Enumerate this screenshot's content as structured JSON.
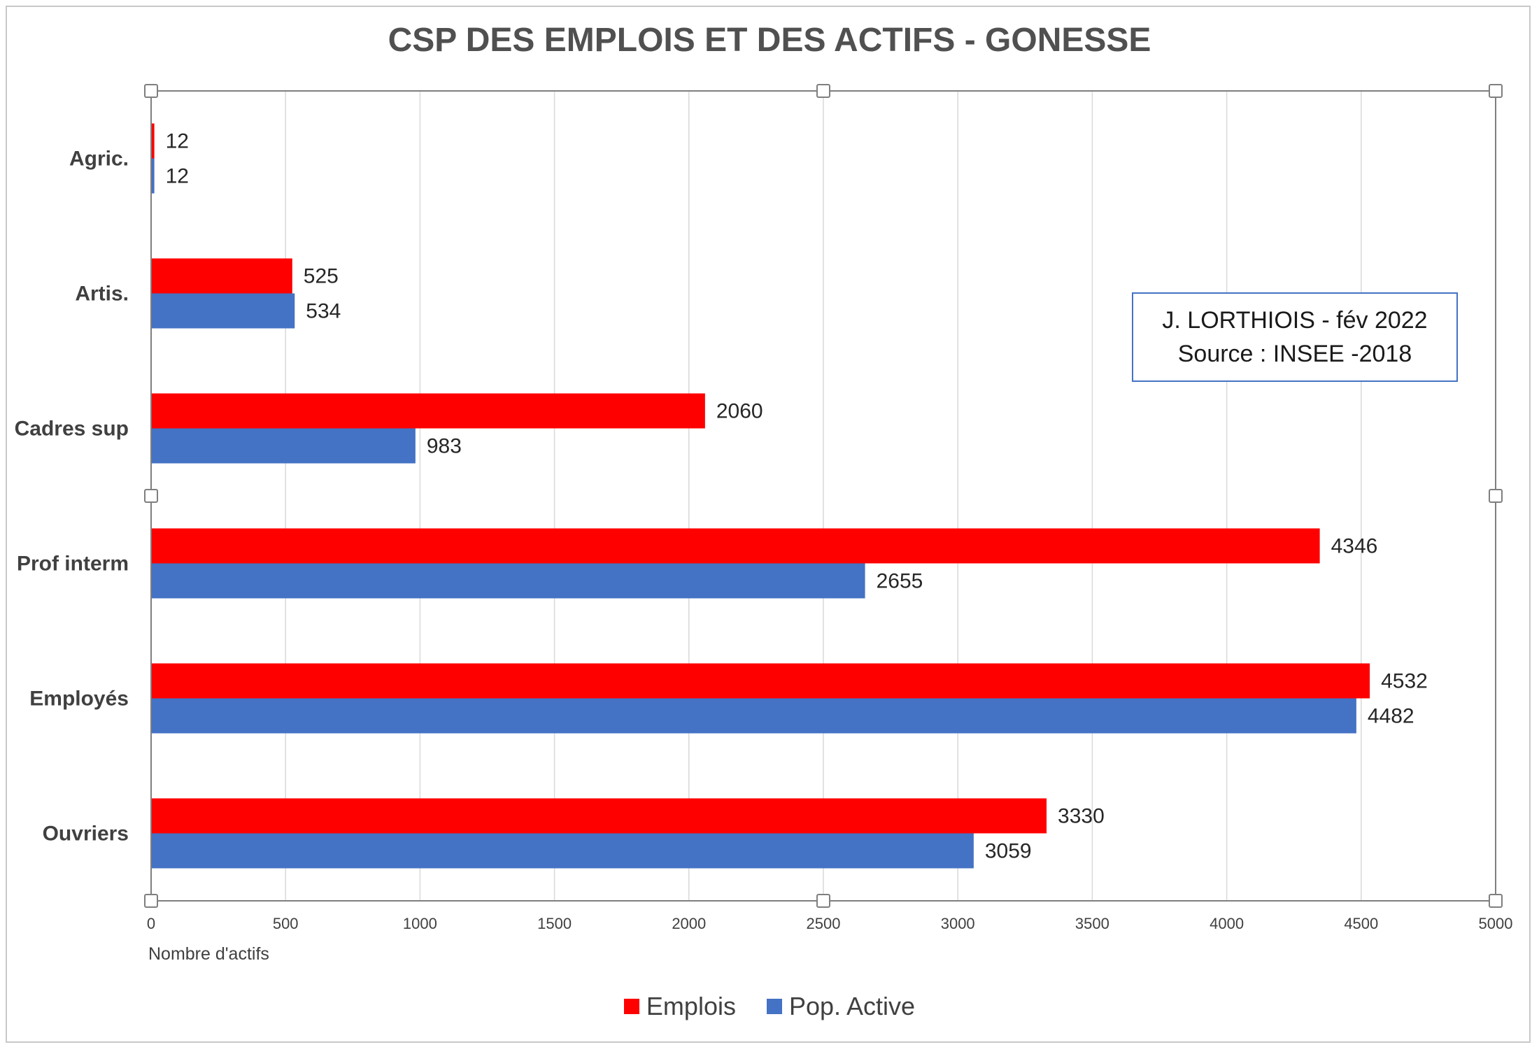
{
  "chart_data": {
    "type": "bar",
    "orientation": "horizontal",
    "title": "CSP DES EMPLOIS ET DES ACTIFS - GONESSE",
    "xlabel": "Nombre d'actifs",
    "ylabel": "",
    "xlim": [
      0,
      5000
    ],
    "xticks": [
      0,
      500,
      1000,
      1500,
      2000,
      2500,
      3000,
      3500,
      4000,
      4500,
      5000
    ],
    "grid": true,
    "legend_position": "bottom",
    "categories": [
      "Agric.",
      "Artis.",
      "Cadres sup",
      "Prof interm",
      "Employés",
      "Ouvriers"
    ],
    "series": [
      {
        "name": "Emplois",
        "color": "#ff0000",
        "values": [
          12,
          525,
          2060,
          4346,
          4532,
          3330
        ]
      },
      {
        "name": "Pop. Active",
        "color": "#4472c4",
        "values": [
          12,
          534,
          983,
          2655,
          4482,
          3059
        ]
      }
    ],
    "annotation": {
      "line1": "J. LORTHIOIS - fév 2022",
      "line2": "Source : INSEE -2018"
    }
  }
}
